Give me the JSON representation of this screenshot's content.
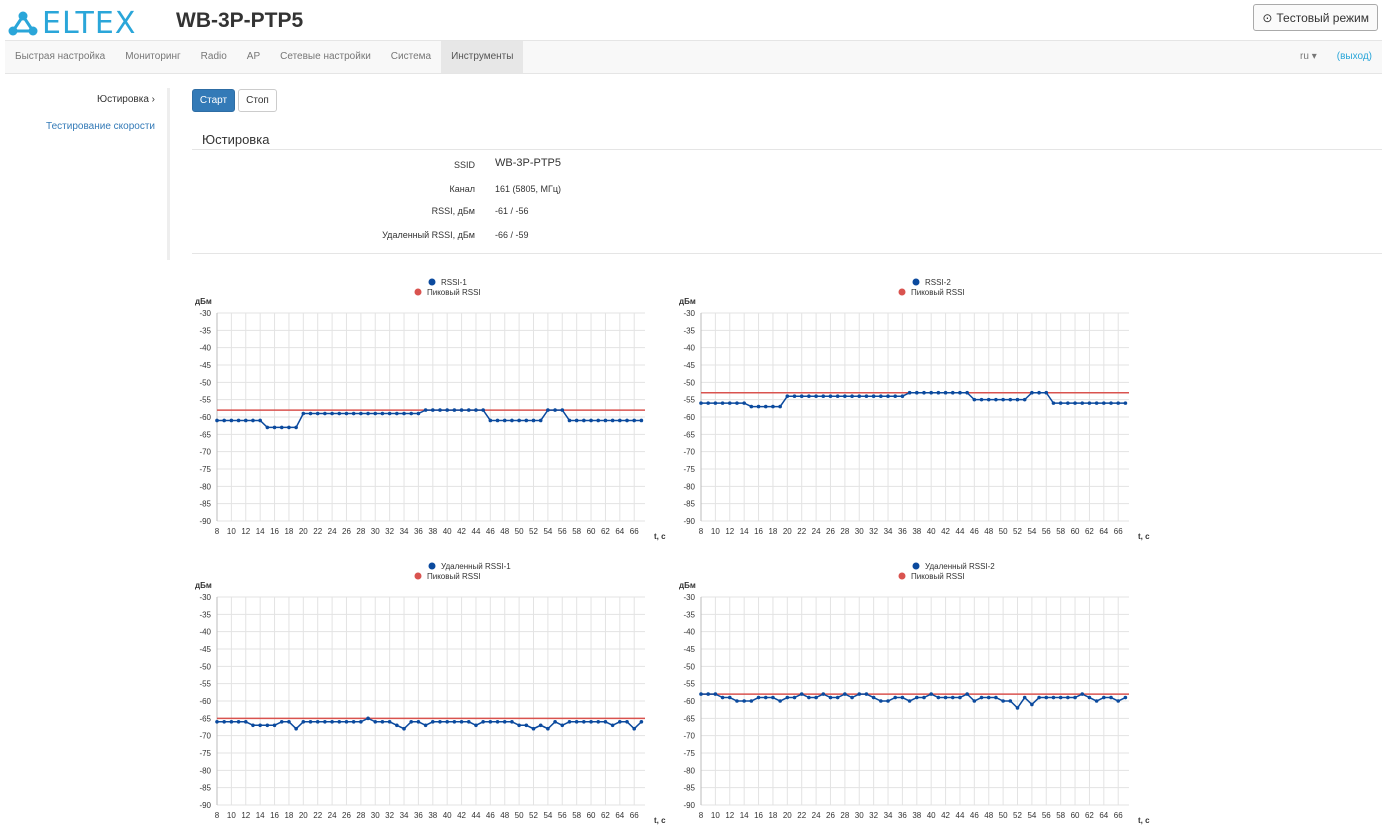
{
  "header": {
    "logo": "ELTEX",
    "model": "WB-3P-PTP5",
    "test_mode_label": "Тестовый режим",
    "test_mode_icon": "clock-icon"
  },
  "nav": {
    "items": [
      "Быстрая настройка",
      "Мониторинг",
      "Radio",
      "AP",
      "Сетевые настройки",
      "Система",
      "Инструменты"
    ],
    "active": "Инструменты",
    "lang": "ru",
    "exit": "(выход)"
  },
  "sidebar": {
    "items": [
      {
        "label": "Юстировка ›"
      },
      {
        "label": "Тестирование скорости"
      }
    ]
  },
  "toolbar": {
    "start": "Старт",
    "stop": "Стоп"
  },
  "section": {
    "title": "Юстировка",
    "rows": [
      {
        "k": "SSID",
        "v": "WB-3P-PTP5"
      },
      {
        "k": "Канал",
        "v": "161 (5805, МГц)"
      },
      {
        "k": "RSSI, дБм",
        "v": "-61 / -56"
      },
      {
        "k": "Удаленный RSSI, дБм",
        "v": "-66 / -59"
      }
    ]
  },
  "colors": {
    "series": "#0b4a9e",
    "peak": "#d9534f",
    "accent": "#337ab7"
  },
  "chart_data": [
    {
      "type": "line",
      "series": [
        {
          "name": "RSSI-1",
          "values": [
            -61,
            -61,
            -61,
            -61,
            -61,
            -61,
            -61,
            -63,
            -63,
            -63,
            -63,
            -63,
            -59,
            -59,
            -59,
            -59,
            -59,
            -59,
            -59,
            -59,
            -59,
            -59,
            -59,
            -59,
            -59,
            -59,
            -59,
            -59,
            -59,
            -58,
            -58,
            -58,
            -58,
            -58,
            -58,
            -58,
            -58,
            -58,
            -61,
            -61,
            -61,
            -61,
            -61,
            -61,
            -61,
            -61,
            -58,
            -58,
            -58,
            -61,
            -61,
            -61,
            -61,
            -61,
            -61,
            -61,
            -61,
            -61,
            -61,
            -61
          ]
        },
        {
          "name": "Пиковый RSSI",
          "value": -58
        }
      ],
      "x_start": 8,
      "xlim": [
        8,
        67.5
      ],
      "xticks": [
        8,
        10,
        12,
        14,
        16,
        18,
        20,
        22,
        24,
        26,
        28,
        30,
        32,
        34,
        36,
        38,
        40,
        42,
        44,
        46,
        48,
        50,
        52,
        54,
        56,
        58,
        60,
        62,
        64,
        66
      ],
      "ylim": [
        -90,
        -30
      ],
      "yticks": [
        -30,
        -35,
        -40,
        -45,
        -50,
        -55,
        -60,
        -65,
        -70,
        -75,
        -80,
        -85,
        -90
      ],
      "ylabel": "дБм",
      "xlabel": "t, с",
      "grid": true,
      "legend": "top-center"
    },
    {
      "type": "line",
      "series": [
        {
          "name": "RSSI-2",
          "values": [
            -56,
            -56,
            -56,
            -56,
            -56,
            -56,
            -56,
            -57,
            -57,
            -57,
            -57,
            -57,
            -54,
            -54,
            -54,
            -54,
            -54,
            -54,
            -54,
            -54,
            -54,
            -54,
            -54,
            -54,
            -54,
            -54,
            -54,
            -54,
            -54,
            -53,
            -53,
            -53,
            -53,
            -53,
            -53,
            -53,
            -53,
            -53,
            -55,
            -55,
            -55,
            -55,
            -55,
            -55,
            -55,
            -55,
            -53,
            -53,
            -53,
            -56,
            -56,
            -56,
            -56,
            -56,
            -56,
            -56,
            -56,
            -56,
            -56,
            -56
          ]
        },
        {
          "name": "Пиковый RSSI",
          "value": -53
        }
      ],
      "x_start": 8,
      "xlim": [
        8,
        67.5
      ],
      "xticks": [
        8,
        10,
        12,
        14,
        16,
        18,
        20,
        22,
        24,
        26,
        28,
        30,
        32,
        34,
        36,
        38,
        40,
        42,
        44,
        46,
        48,
        50,
        52,
        54,
        56,
        58,
        60,
        62,
        64,
        66
      ],
      "ylim": [
        -90,
        -30
      ],
      "yticks": [
        -30,
        -35,
        -40,
        -45,
        -50,
        -55,
        -60,
        -65,
        -70,
        -75,
        -80,
        -85,
        -90
      ],
      "ylabel": "дБм",
      "xlabel": "t, с",
      "grid": true,
      "legend": "top-center"
    },
    {
      "type": "line",
      "series": [
        {
          "name": "Удаленный RSSI-1",
          "values": [
            -66,
            -66,
            -66,
            -66,
            -66,
            -67,
            -67,
            -67,
            -67,
            -66,
            -66,
            -68,
            -66,
            -66,
            -66,
            -66,
            -66,
            -66,
            -66,
            -66,
            -66,
            -65,
            -66,
            -66,
            -66,
            -67,
            -68,
            -66,
            -66,
            -67,
            -66,
            -66,
            -66,
            -66,
            -66,
            -66,
            -67,
            -66,
            -66,
            -66,
            -66,
            -66,
            -67,
            -67,
            -68,
            -67,
            -68,
            -66,
            -67,
            -66,
            -66,
            -66,
            -66,
            -66,
            -66,
            -67,
            -66,
            -66,
            -68,
            -66
          ]
        },
        {
          "name": "Пиковый RSSI",
          "value": -65
        }
      ],
      "x_start": 8,
      "xlim": [
        8,
        67.5
      ],
      "xticks": [
        8,
        10,
        12,
        14,
        16,
        18,
        20,
        22,
        24,
        26,
        28,
        30,
        32,
        34,
        36,
        38,
        40,
        42,
        44,
        46,
        48,
        50,
        52,
        54,
        56,
        58,
        60,
        62,
        64,
        66
      ],
      "ylim": [
        -90,
        -30
      ],
      "yticks": [
        -30,
        -35,
        -40,
        -45,
        -50,
        -55,
        -60,
        -65,
        -70,
        -75,
        -80,
        -85,
        -90
      ],
      "ylabel": "дБм",
      "xlabel": "t, с",
      "grid": true,
      "legend": "top-center"
    },
    {
      "type": "line",
      "series": [
        {
          "name": "Удаленный RSSI-2",
          "values": [
            -58,
            -58,
            -58,
            -59,
            -59,
            -60,
            -60,
            -60,
            -59,
            -59,
            -59,
            -60,
            -59,
            -59,
            -58,
            -59,
            -59,
            -58,
            -59,
            -59,
            -58,
            -59,
            -58,
            -58,
            -59,
            -60,
            -60,
            -59,
            -59,
            -60,
            -59,
            -59,
            -58,
            -59,
            -59,
            -59,
            -59,
            -58,
            -60,
            -59,
            -59,
            -59,
            -60,
            -60,
            -62,
            -59,
            -61,
            -59,
            -59,
            -59,
            -59,
            -59,
            -59,
            -58,
            -59,
            -60,
            -59,
            -59,
            -60,
            -59
          ]
        },
        {
          "name": "Пиковый RSSI",
          "value": -58
        }
      ],
      "x_start": 8,
      "xlim": [
        8,
        67.5
      ],
      "xticks": [
        8,
        10,
        12,
        14,
        16,
        18,
        20,
        22,
        24,
        26,
        28,
        30,
        32,
        34,
        36,
        38,
        40,
        42,
        44,
        46,
        48,
        50,
        52,
        54,
        56,
        58,
        60,
        62,
        64,
        66
      ],
      "ylim": [
        -90,
        -30
      ],
      "yticks": [
        -30,
        -35,
        -40,
        -45,
        -50,
        -55,
        -60,
        -65,
        -70,
        -75,
        -80,
        -85,
        -90
      ],
      "ylabel": "дБм",
      "xlabel": "t, с",
      "grid": true,
      "legend": "top-center"
    }
  ]
}
